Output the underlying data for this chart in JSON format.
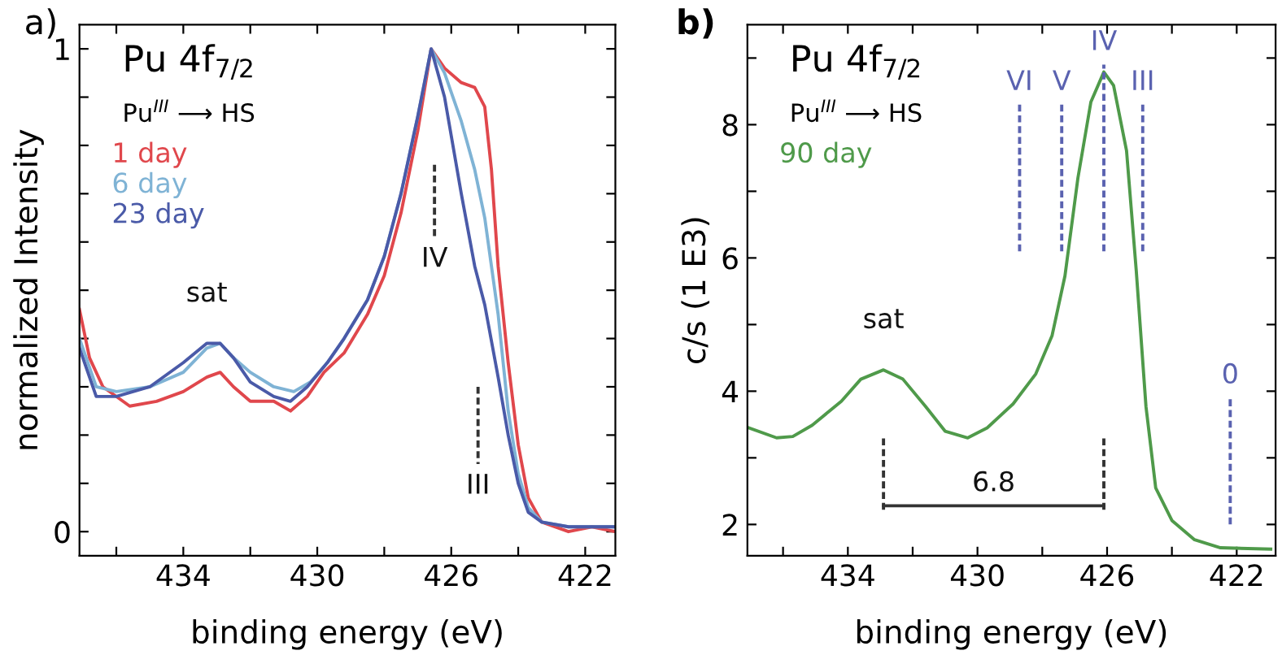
{
  "chart_data": [
    {
      "type": "line",
      "title": "a)",
      "xlabel": "binding energy (eV)",
      "ylabel": "normalized Intensity",
      "xlim": [
        437.1,
        421.1
      ],
      "ylim": [
        -0.05,
        1.05
      ],
      "xticks": [
        {
          "value": 436,
          "label": null
        },
        434,
        {
          "value": 432,
          "label": null
        },
        430,
        {
          "value": 428,
          "label": null
        },
        426,
        {
          "value": 424,
          "label": null
        },
        422
      ],
      "yticks": [
        0,
        {
          "value": 0.1,
          "label": null
        },
        {
          "value": 0.2,
          "label": null
        },
        {
          "value": 0.3,
          "label": null
        },
        {
          "value": 0.4,
          "label": null
        },
        {
          "value": 0.5,
          "label": null
        },
        {
          "value": 0.6,
          "label": null
        },
        {
          "value": 0.7,
          "label": null
        },
        {
          "value": 0.8,
          "label": null
        },
        {
          "value": 0.9,
          "label": null
        },
        1
      ],
      "grid": false,
      "legend": "top left",
      "marker": "none",
      "annotations": [
        "Pu 4f$_{7/2}$",
        "Pu$^{III}$ ⟶ HS",
        {
          "text": "sat",
          "x": 433.3,
          "y": 0.39
        },
        {
          "text": "IV",
          "x": 426.5,
          "y": 0.61
        },
        {
          "text": "III",
          "x": 425.2,
          "y": 0.14
        }
      ],
      "series": [
        {
          "name": "1 day",
          "color": "#e0474c",
          "x": [
            437.1,
            436.8,
            436.4,
            435.6,
            434.8,
            434.0,
            433.3,
            432.9,
            432.5,
            432.0,
            431.3,
            430.8,
            430.3,
            429.8,
            429.2,
            428.5,
            428.0,
            427.5,
            427.0,
            426.6,
            426.2,
            425.7,
            425.3,
            425.0,
            424.8,
            424.6,
            424.3,
            424.0,
            423.7,
            423.3,
            422.5,
            421.8,
            421.1
          ],
          "values": [
            0.46,
            0.36,
            0.3,
            0.26,
            0.27,
            0.29,
            0.32,
            0.33,
            0.3,
            0.27,
            0.27,
            0.25,
            0.28,
            0.33,
            0.37,
            0.45,
            0.53,
            0.66,
            0.83,
            1.0,
            0.96,
            0.93,
            0.92,
            0.88,
            0.75,
            0.55,
            0.35,
            0.18,
            0.07,
            0.02,
            0.0,
            0.01,
            0.0
          ]
        },
        {
          "name": "6 day",
          "color": "#7fb3d5",
          "x": [
            437.1,
            436.6,
            436.0,
            435.0,
            434.0,
            433.3,
            432.9,
            432.5,
            432.0,
            431.3,
            430.7,
            430.2,
            429.7,
            429.2,
            428.5,
            428.0,
            427.5,
            427.0,
            426.6,
            426.2,
            425.7,
            425.3,
            425.0,
            424.6,
            424.3,
            424.0,
            423.7,
            423.3,
            422.5,
            421.1
          ],
          "values": [
            0.4,
            0.3,
            0.29,
            0.3,
            0.33,
            0.38,
            0.39,
            0.36,
            0.33,
            0.3,
            0.29,
            0.31,
            0.35,
            0.4,
            0.48,
            0.57,
            0.7,
            0.86,
            1.0,
            0.95,
            0.85,
            0.75,
            0.65,
            0.45,
            0.25,
            0.12,
            0.05,
            0.02,
            0.01,
            0.01
          ]
        },
        {
          "name": "23 day",
          "color": "#4a5aa8",
          "x": [
            437.1,
            436.6,
            436.0,
            435.0,
            434.0,
            433.3,
            432.9,
            432.5,
            432.0,
            431.3,
            430.8,
            430.3,
            429.7,
            429.2,
            428.5,
            428.0,
            427.5,
            427.0,
            426.6,
            426.2,
            425.7,
            425.3,
            425.0,
            424.6,
            424.3,
            424.0,
            423.7,
            423.3,
            422.5,
            421.1
          ],
          "values": [
            0.38,
            0.28,
            0.28,
            0.3,
            0.35,
            0.39,
            0.39,
            0.36,
            0.31,
            0.28,
            0.27,
            0.3,
            0.35,
            0.4,
            0.48,
            0.57,
            0.7,
            0.86,
            1.0,
            0.9,
            0.7,
            0.55,
            0.47,
            0.32,
            0.2,
            0.1,
            0.04,
            0.02,
            0.01,
            0.01
          ]
        },
        {
          "color": "#333333",
          "line_style": "dashed",
          "x": [
            426.5,
            426.5
          ],
          "values": [
            0.76,
            0.61
          ]
        },
        {
          "color": "#333333",
          "line_style": "dashed",
          "x": [
            425.2,
            425.2
          ],
          "values": [
            0.3,
            0.14
          ]
        }
      ]
    },
    {
      "type": "line",
      "title": "b)",
      "xlabel": "binding energy (eV)",
      "ylabel": "c/s (1 E3)",
      "xlim": [
        437.1,
        420.8
      ],
      "ylim": [
        1.53,
        9.5
      ],
      "xticks": [
        {
          "value": 436,
          "label": null
        },
        434,
        {
          "value": 432,
          "label": null
        },
        430,
        {
          "value": 428,
          "label": null
        },
        426,
        {
          "value": 424,
          "label": null
        },
        422
      ],
      "yticks": [
        2,
        {
          "value": 3,
          "label": null
        },
        4,
        {
          "value": 5,
          "label": null
        },
        6,
        {
          "value": 7,
          "label": null
        },
        8,
        {
          "value": 9,
          "label": null
        }
      ],
      "grid": false,
      "legend": "top left",
      "marker": "none",
      "annotations": [
        "Pu 4f$_{7/2}$",
        "Pu$^{III}$ ⟶ HS",
        {
          "text": "sat",
          "x": 432.9,
          "y": 4.32
        },
        {
          "text": "VI",
          "x": 428.7,
          "y": 8.3
        },
        {
          "text": "V",
          "x": 427.4,
          "y": 8.3
        },
        {
          "text": "IV",
          "x": 426.1,
          "y": 8.9
        },
        {
          "text": "III",
          "x": 424.9,
          "y": 8.3
        },
        {
          "text": "0",
          "x": 422.2,
          "y": 3.9
        },
        {
          "text": "6.8",
          "x": 429.5,
          "y": 2.28
        }
      ],
      "series": [
        {
          "name": "90 day",
          "color": "#4f9a4a",
          "x": [
            437.05,
            436.2,
            435.7,
            435.1,
            434.2,
            433.6,
            432.9,
            432.3,
            431.6,
            431.0,
            430.3,
            429.7,
            428.9,
            428.2,
            427.7,
            427.3,
            426.9,
            426.5,
            426.1,
            425.8,
            425.4,
            425.1,
            424.8,
            424.5,
            424.0,
            423.3,
            422.5,
            420.95
          ],
          "values": [
            3.45,
            3.3,
            3.32,
            3.49,
            3.85,
            4.18,
            4.32,
            4.18,
            3.77,
            3.4,
            3.3,
            3.45,
            3.81,
            4.26,
            4.83,
            5.73,
            7.2,
            8.34,
            8.79,
            8.59,
            7.61,
            5.81,
            3.77,
            2.55,
            2.06,
            1.77,
            1.65,
            1.63
          ]
        },
        {
          "color": "#5a62b0",
          "line_style": "dashed",
          "x": [
            428.7,
            428.7
          ],
          "values": [
            6.1,
            8.3
          ]
        },
        {
          "color": "#5a62b0",
          "line_style": "dashed",
          "x": [
            427.4,
            427.4
          ],
          "values": [
            6.1,
            8.3
          ]
        },
        {
          "color": "#5a62b0",
          "line_style": "dashed",
          "x": [
            426.1,
            426.1
          ],
          "values": [
            6.1,
            8.9
          ]
        },
        {
          "color": "#5a62b0",
          "line_style": "dashed",
          "x": [
            424.9,
            424.9
          ],
          "values": [
            6.1,
            8.3
          ]
        },
        {
          "color": "#5a62b0",
          "line_style": "dashed",
          "x": [
            422.2,
            422.2
          ],
          "values": [
            2.0,
            3.9
          ]
        },
        {
          "color": "#333333",
          "line_style": "dashed",
          "x": [
            432.9,
            432.9
          ],
          "values": [
            2.22,
            3.32
          ]
        },
        {
          "color": "#333333",
          "line_style": "dashed",
          "x": [
            426.1,
            426.1
          ],
          "values": [
            2.22,
            3.32
          ]
        },
        {
          "color": "#333333",
          "line_style": "solid",
          "x": [
            432.9,
            426.1
          ],
          "values": [
            2.28,
            2.28
          ]
        }
      ]
    }
  ]
}
